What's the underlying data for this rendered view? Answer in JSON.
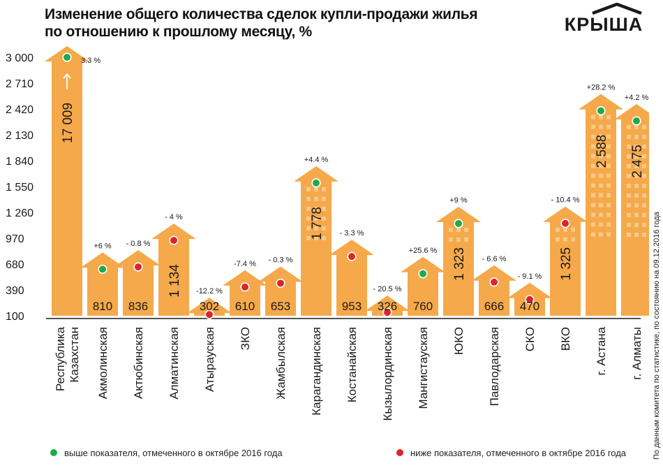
{
  "title_line1": "Изменение общего количества сделок купли-продажи жилья",
  "title_line2": "по отношению к прошлому месяцу, %",
  "logo_text": "КРЫША",
  "source_note": "По данным комитета по статистике, по состоянию на 09.12.2016 года",
  "legend": {
    "above": "выше показателя, отмеченного в октябре 2016 года",
    "below": "ниже показателя, отмеченного в октябре 2016 года"
  },
  "colors": {
    "bar": "#f5a94a",
    "window": "#f9c98a",
    "above": "#22a84a",
    "below": "#e0232a",
    "text": "#1a1a1a"
  },
  "chart_data": {
    "type": "bar",
    "title": "Изменение общего количества сделок купли-продажи жилья по отношению к прошлому месяцу, %",
    "y_ticks": [
      "100",
      "390",
      "680",
      "970",
      "1 260",
      "1 550",
      "1 840",
      "2 130",
      "2 420",
      "2 710",
      "3 000"
    ],
    "ylim": [
      100,
      3000
    ],
    "grid": false,
    "legend_position": "bottom",
    "categories": [
      {
        "label": [
          "Республика",
          "Казахстан"
        ],
        "value": 17009,
        "value_label": "17 009",
        "change": "3.3 %",
        "status": "above",
        "truncated": true
      },
      {
        "label": [
          "Акмолинская"
        ],
        "value": 810,
        "value_label": "810",
        "change": "+6 %",
        "status": "above"
      },
      {
        "label": [
          "Актюбинская"
        ],
        "value": 836,
        "value_label": "836",
        "change": "- 0.8 %",
        "status": "below"
      },
      {
        "label": [
          "Алматинская"
        ],
        "value": 1134,
        "value_label": "1 134",
        "change": "- 4 %",
        "status": "below"
      },
      {
        "label": [
          "Атырауская"
        ],
        "value": 302,
        "value_label": "302",
        "change": "-12.2 %",
        "status": "below"
      },
      {
        "label": [
          "ЗКО"
        ],
        "value": 610,
        "value_label": "610",
        "change": "-7.4 %",
        "status": "below"
      },
      {
        "label": [
          "Жамбылская"
        ],
        "value": 653,
        "value_label": "653",
        "change": "- 0.3 %",
        "status": "below"
      },
      {
        "label": [
          "Карагандинская"
        ],
        "value": 1778,
        "value_label": "1 778",
        "change": "+4.4 %",
        "status": "above"
      },
      {
        "label": [
          "Костанайская"
        ],
        "value": 953,
        "value_label": "953",
        "change": "- 3.3 %",
        "status": "below"
      },
      {
        "label": [
          "Кызылординская"
        ],
        "value": 326,
        "value_label": "326",
        "change": "- 20.5 %",
        "status": "below"
      },
      {
        "label": [
          "Мангистауская"
        ],
        "value": 760,
        "value_label": "760",
        "change": "+25.6 %",
        "status": "above"
      },
      {
        "label": [
          "ЮКО"
        ],
        "value": 1323,
        "value_label": "1 323",
        "change": "+9 %",
        "status": "above"
      },
      {
        "label": [
          "Павлодарская"
        ],
        "value": 666,
        "value_label": "666",
        "change": "- 6.6 %",
        "status": "below"
      },
      {
        "label": [
          "СКО"
        ],
        "value": 470,
        "value_label": "470",
        "change": "- 9.1 %",
        "status": "below"
      },
      {
        "label": [
          "ВКО"
        ],
        "value": 1325,
        "value_label": "1 325",
        "change": "- 10.4 %",
        "status": "below"
      },
      {
        "label": [
          "г. Астана"
        ],
        "value": 2588,
        "value_label": "2 588",
        "change": "+28.2 %",
        "status": "above"
      },
      {
        "label": [
          "г. Алматы"
        ],
        "value": 2475,
        "value_label": "2 475",
        "change": "+4.2 %",
        "status": "above"
      }
    ]
  }
}
